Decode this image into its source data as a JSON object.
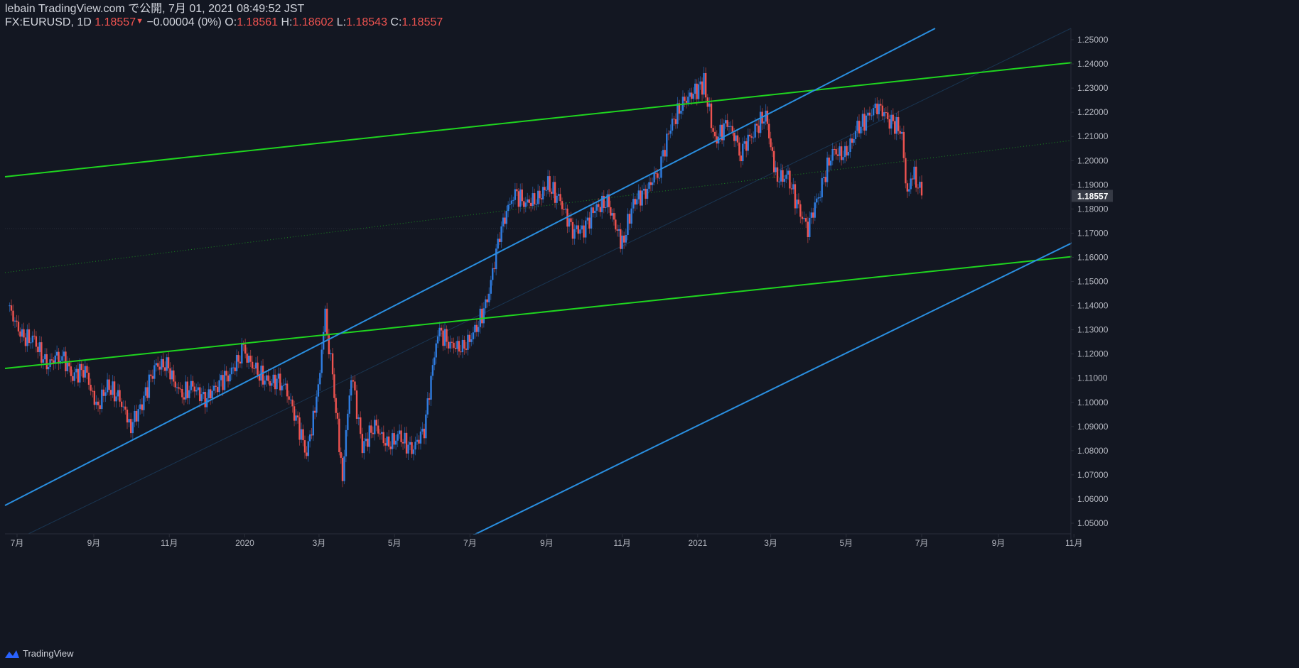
{
  "header": {
    "line1": "lebain TradingView.com で公開, 7月 01, 2021 08:49:52 JST",
    "symbol": "FX:EURUSD, 1D",
    "last": "1.18557",
    "change_arrow": "▼",
    "change": "−0.00004 (0%)",
    "o_label": "O:",
    "o_value": "1.18561",
    "h_label": "H:",
    "h_value": "1.18602",
    "l_label": "L:",
    "l_value": "1.18543",
    "c_label": "C:",
    "c_value": "1.18557"
  },
  "footer": {
    "brand": "TradingView"
  },
  "colors": {
    "background": "#131722",
    "up": "#2962ff",
    "down": "#ef5350",
    "up_candle": "#2f7de1",
    "down_candle": "#ef5350",
    "channel": "#2a8fe0",
    "green": "#1fd51f",
    "axis_text": "#b2b5be",
    "price_badge": "#363a45"
  },
  "chart_data": {
    "type": "candlestick",
    "symbol": "FX:EURUSD",
    "timeframe": "1D",
    "x_tick_labels": [
      "7月",
      "9月",
      "11月",
      "2020",
      "3月",
      "5月",
      "7月",
      "9月",
      "11月",
      "2021",
      "3月",
      "5月",
      "7月",
      "9月",
      "11月"
    ],
    "x_tick_dates": [
      "2019-07-01",
      "2019-09-01",
      "2019-11-01",
      "2020-01-01",
      "2020-03-01",
      "2020-05-01",
      "2020-07-01",
      "2020-09-01",
      "2020-11-01",
      "2021-01-01",
      "2021-03-01",
      "2021-05-01",
      "2021-07-01",
      "2021-09-01",
      "2021-11-01"
    ],
    "y_ticks": [
      "1.25000",
      "1.24000",
      "1.23000",
      "1.22000",
      "1.21000",
      "1.20000",
      "1.19000",
      "1.18000",
      "1.17000",
      "1.16000",
      "1.15000",
      "1.14000",
      "1.13000",
      "1.12000",
      "1.11000",
      "1.10000",
      "1.09000",
      "1.08000",
      "1.07000",
      "1.06000",
      "1.05000"
    ],
    "ylim": [
      1.046,
      1.256
    ],
    "current_price": "1.18557",
    "close_series": [
      [
        "2019-06-25",
        1.1385
      ],
      [
        "2019-07-05",
        1.127
      ],
      [
        "2019-07-15",
        1.1255
      ],
      [
        "2019-07-25",
        1.115
      ],
      [
        "2019-08-05",
        1.1205
      ],
      [
        "2019-08-15",
        1.111
      ],
      [
        "2019-08-25",
        1.114
      ],
      [
        "2019-09-03",
        1.097
      ],
      [
        "2019-09-12",
        1.107
      ],
      [
        "2019-09-22",
        1.101
      ],
      [
        "2019-10-01",
        1.0905
      ],
      [
        "2019-10-10",
        1.0995
      ],
      [
        "2019-10-20",
        1.115
      ],
      [
        "2019-10-30",
        1.1155
      ],
      [
        "2019-11-10",
        1.1025
      ],
      [
        "2019-11-20",
        1.1065
      ],
      [
        "2019-11-30",
        1.101
      ],
      [
        "2019-12-10",
        1.1075
      ],
      [
        "2019-12-20",
        1.112
      ],
      [
        "2019-12-31",
        1.121
      ],
      [
        "2020-01-10",
        1.113
      ],
      [
        "2020-01-20",
        1.108
      ],
      [
        "2020-01-31",
        1.1095
      ],
      [
        "2020-02-10",
        1.096
      ],
      [
        "2020-02-20",
        1.079
      ],
      [
        "2020-02-28",
        1.1
      ],
      [
        "2020-03-06",
        1.135
      ],
      [
        "2020-03-12",
        1.11
      ],
      [
        "2020-03-20",
        1.0695
      ],
      [
        "2020-03-27",
        1.113
      ],
      [
        "2020-04-05",
        1.081
      ],
      [
        "2020-04-15",
        1.091
      ],
      [
        "2020-04-25",
        1.082
      ],
      [
        "2020-05-05",
        1.086
      ],
      [
        "2020-05-15",
        1.08
      ],
      [
        "2020-05-25",
        1.089
      ],
      [
        "2020-06-05",
        1.13
      ],
      [
        "2020-06-15",
        1.124
      ],
      [
        "2020-06-25",
        1.122
      ],
      [
        "2020-07-05",
        1.129
      ],
      [
        "2020-07-15",
        1.142
      ],
      [
        "2020-07-25",
        1.17
      ],
      [
        "2020-08-05",
        1.187
      ],
      [
        "2020-08-15",
        1.1825
      ],
      [
        "2020-08-25",
        1.184
      ],
      [
        "2020-09-02",
        1.19
      ],
      [
        "2020-09-12",
        1.183
      ],
      [
        "2020-09-22",
        1.171
      ],
      [
        "2020-10-01",
        1.172
      ],
      [
        "2020-10-10",
        1.18
      ],
      [
        "2020-10-20",
        1.183
      ],
      [
        "2020-11-01",
        1.165
      ],
      [
        "2020-11-10",
        1.183
      ],
      [
        "2020-11-20",
        1.187
      ],
      [
        "2020-12-01",
        1.197
      ],
      [
        "2020-12-10",
        1.214
      ],
      [
        "2020-12-20",
        1.224
      ],
      [
        "2021-01-06",
        1.232
      ],
      [
        "2021-01-15",
        1.208
      ],
      [
        "2021-01-25",
        1.216
      ],
      [
        "2021-02-05",
        1.204
      ],
      [
        "2021-02-15",
        1.212
      ],
      [
        "2021-02-25",
        1.219
      ],
      [
        "2021-03-05",
        1.193
      ],
      [
        "2021-03-15",
        1.193
      ],
      [
        "2021-03-25",
        1.178
      ],
      [
        "2021-03-31",
        1.1725
      ],
      [
        "2021-04-10",
        1.188
      ],
      [
        "2021-04-20",
        1.204
      ],
      [
        "2021-04-30",
        1.202
      ],
      [
        "2021-05-10",
        1.213
      ],
      [
        "2021-05-20",
        1.219
      ],
      [
        "2021-05-26",
        1.223
      ],
      [
        "2021-06-05",
        1.217
      ],
      [
        "2021-06-15",
        1.212
      ],
      [
        "2021-06-18",
        1.187
      ],
      [
        "2021-06-25",
        1.1935
      ],
      [
        "2021-07-01",
        1.18557
      ]
    ]
  }
}
